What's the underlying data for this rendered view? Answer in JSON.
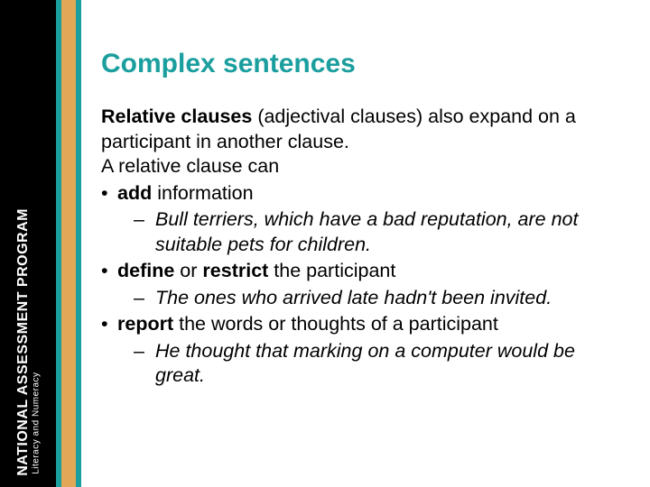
{
  "colors": {
    "title": "#1b9e9e",
    "sidebar_bg": "#000000",
    "sidebar_text": "#ffffff",
    "stripe_teal": "#1b9e9e",
    "stripe_orange": "#e3a857",
    "body_text": "#000000",
    "page_bg": "#ffffff"
  },
  "typography": {
    "title_fontsize": 30,
    "body_fontsize": 21.5,
    "font_family": "Arial"
  },
  "sidebar": {
    "main": "NATIONAL ASSESSMENT PROGRAM",
    "sub": "Literacy and Numeracy"
  },
  "title": "Complex sentences",
  "intro": {
    "lead": "Relative clauses",
    "rest1": " (adjectival clauses) also expand on a participant in another clause.",
    "line2": "A relative clause can"
  },
  "bullets": [
    {
      "bold": "add",
      "rest": " information",
      "sub": "Bull terriers, which have a bad reputation, are not suitable pets for children."
    },
    {
      "bold1": "define",
      "mid": " or ",
      "bold2": "restrict",
      "rest": " the participant",
      "sub": "The ones who arrived late hadn't been invited."
    },
    {
      "bold": "report",
      "rest": " the words or thoughts of a participant",
      "sub": "He thought that marking on a computer would be great."
    }
  ]
}
